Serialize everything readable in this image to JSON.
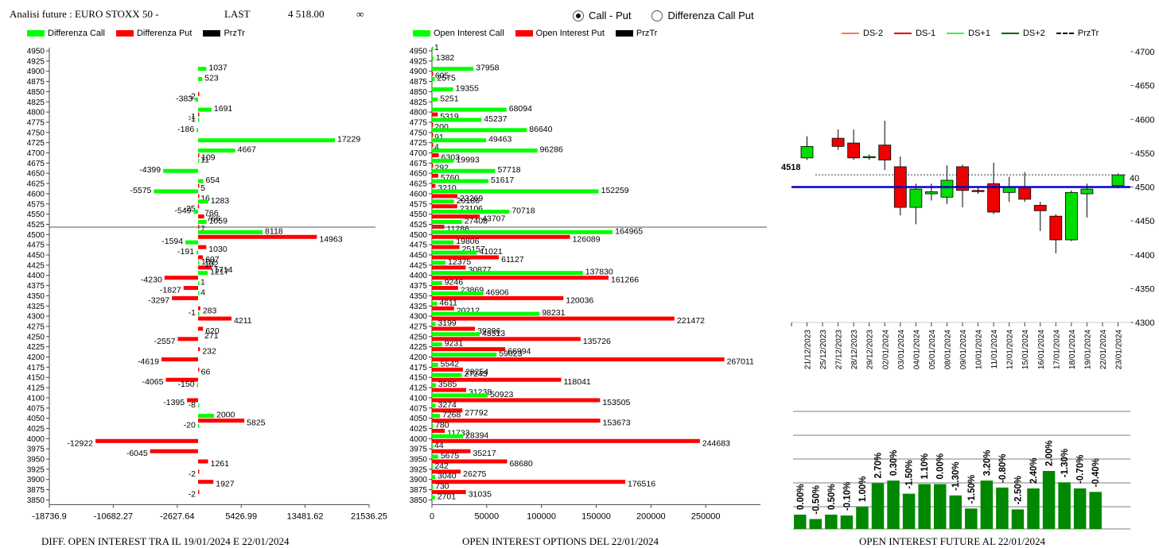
{
  "header": {
    "label": "Analisi future : EURO STOXX 50 -",
    "last_label": "LAST",
    "last_value": "4 518.00",
    "infinity": "∞"
  },
  "radio": {
    "options": [
      "Call - Put",
      "Differenza Call Put"
    ],
    "selected": "Call - Put"
  },
  "colors": {
    "call": "#00ff00",
    "put": "#ff0000",
    "prztr": "#000000",
    "candle_up": "#00dd00",
    "candle_down": "#ee0000",
    "bar_future": "#008800",
    "ref_line": "#0000cc",
    "ds_minus2": "#f08050",
    "ds_minus1": "#dd0000",
    "ds_plus1": "#44ee44",
    "ds_plus2": "#006600"
  },
  "legend1": [
    "Differenza Call",
    "Differenza Put",
    "PrzTr"
  ],
  "legend2": [
    "Open Interest Call",
    "Open Interest Put",
    "PrzTr"
  ],
  "legend3": [
    "DS-2",
    "DS-1",
    "DS+1",
    "DS+2",
    "PrzTr"
  ],
  "captions": {
    "left": "DIFF. OPEN INTEREST TRA IL 19/01/2024 E 22/01/2024",
    "middle": "OPEN INTEREST OPTIONS DEL 22/01/2024",
    "right": "OPEN INTEREST FUTURE AL 22/01/2024"
  },
  "chart_data": [
    {
      "type": "bar",
      "orientation": "horizontal",
      "categories": [
        4950,
        4925,
        4900,
        4875,
        4850,
        4825,
        4800,
        4775,
        4750,
        4725,
        4700,
        4675,
        4650,
        4625,
        4600,
        4575,
        4550,
        4525,
        4500,
        4475,
        4450,
        4425,
        4400,
        4375,
        4350,
        4325,
        4300,
        4275,
        4250,
        4225,
        4200,
        4175,
        4150,
        4125,
        4100,
        4075,
        4050,
        4025,
        4000,
        3975,
        3950,
        3925,
        3900,
        3875,
        3850
      ],
      "series": [
        {
          "name": "Differenza Call",
          "values": [
            null,
            null,
            1037,
            523,
            null,
            -383,
            1691,
            -1,
            -186,
            17229,
            4667,
            11,
            -4399,
            654,
            -5575,
            1283,
            -549,
            1059,
            8118,
            -1594,
            -191,
            102,
            1217,
            1,
            4,
            null,
            -1,
            null,
            null,
            null,
            null,
            null,
            null,
            -150,
            null,
            -8,
            2000,
            -20,
            null,
            null,
            null,
            null,
            null,
            null,
            null
          ]
        },
        {
          "name": "Differenza Put",
          "values": [
            null,
            null,
            null,
            null,
            -2,
            null,
            -1,
            null,
            null,
            null,
            109,
            null,
            null,
            5,
            16,
            -25,
            766,
            7,
            14963,
            1030,
            607,
            1714,
            -4230,
            -1827,
            -3297,
            283,
            4211,
            620,
            -2557,
            232,
            -4619,
            66,
            -4065,
            null,
            -1395,
            null,
            5825,
            null,
            -12922,
            -6045,
            1261,
            -2,
            1927,
            -2,
            null
          ]
        }
      ],
      "extra_labels": [
        {
          "level": 4550,
          "text": "766"
        },
        {
          "level": 4425,
          "text": "102"
        },
        {
          "level": 4250,
          "text": "271"
        }
      ],
      "prztr": 4518,
      "xticks": [
        -18736.9,
        -10682.27,
        -2627.64,
        5426.99,
        13481.62,
        21536.25
      ],
      "xtick_labels": [
        "-18736.9",
        "-10682.27",
        "-2627.64",
        "5426.99",
        "13481.62",
        "21536.25"
      ],
      "xlim": [
        -18736.9,
        21536.25
      ],
      "ylim": [
        3850,
        4950
      ]
    },
    {
      "type": "bar",
      "orientation": "horizontal",
      "categories": [
        4950,
        4925,
        4900,
        4875,
        4850,
        4825,
        4800,
        4775,
        4750,
        4725,
        4700,
        4675,
        4650,
        4625,
        4600,
        4575,
        4550,
        4525,
        4500,
        4475,
        4450,
        4425,
        4400,
        4375,
        4350,
        4325,
        4300,
        4275,
        4250,
        4225,
        4200,
        4175,
        4150,
        4125,
        4100,
        4075,
        4050,
        4025,
        4000,
        3975,
        3950,
        3925,
        3900,
        3875,
        3850
      ],
      "series": [
        {
          "name": "Open Interest Call",
          "values": [
            1,
            1382,
            37958,
            2575,
            19355,
            5251,
            68094,
            45237,
            86640,
            49463,
            96286,
            19993,
            57718,
            51617,
            152259,
            20186,
            70718,
            27408,
            164965,
            19806,
            41021,
            12375,
            137830,
            9246,
            46906,
            4611,
            98231,
            3199,
            43513,
            9231,
            59023,
            5542,
            27243,
            3585,
            50923,
            3274,
            7268,
            780,
            28394,
            44,
            5675,
            242,
            3040,
            730,
            2701
          ]
        },
        {
          "name": "Open Interest Put",
          "values": [
            null,
            null,
            605,
            null,
            null,
            null,
            5319,
            200,
            91,
            4,
            6303,
            292,
            5760,
            3210,
            23269,
            23106,
            43707,
            11286,
            126089,
            25157,
            61127,
            30877,
            161266,
            23869,
            120036,
            20212,
            221472,
            39296,
            135726,
            66994,
            267011,
            28254,
            118041,
            31238,
            153505,
            27792,
            153673,
            11733,
            244683,
            35217,
            68680,
            26275,
            176516,
            31035,
            null
          ]
        }
      ],
      "prztr": 4518,
      "xticks": [
        0,
        50000,
        100000,
        150000,
        200000,
        250000
      ],
      "xlim": [
        0,
        300000
      ],
      "ylim": [
        3850,
        4950
      ]
    },
    {
      "type": "candlestick",
      "dates": [
        "21/12/2023",
        "25/12/2023",
        "27/12/2023",
        "28/12/2023",
        "29/12/2023",
        "02/01/2024",
        "03/01/2024",
        "04/01/2024",
        "05/01/2024",
        "08/01/2024",
        "09/01/2024",
        "10/01/2024",
        "11/01/2024",
        "12/01/2024",
        "15/01/2024",
        "16/01/2024",
        "17/01/2024",
        "18/01/2024",
        "19/01/2024",
        "22/01/2024",
        "23/01/2024"
      ],
      "candles": [
        {
          "o": 4543,
          "h": 4575,
          "l": 4540,
          "c": 4560
        },
        null,
        {
          "o": 4572,
          "h": 4585,
          "l": 4555,
          "c": 4560
        },
        {
          "o": 4565,
          "h": 4585,
          "l": 4540,
          "c": 4543
        },
        {
          "o": 4545,
          "h": 4548,
          "l": 4540,
          "c": 4545
        },
        {
          "o": 4562,
          "h": 4598,
          "l": 4525,
          "c": 4540
        },
        {
          "o": 4530,
          "h": 4545,
          "l": 4458,
          "c": 4470
        },
        {
          "o": 4470,
          "h": 4505,
          "l": 4445,
          "c": 4497
        },
        {
          "o": 4490,
          "h": 4505,
          "l": 4480,
          "c": 4493
        },
        {
          "o": 4485,
          "h": 4532,
          "l": 4475,
          "c": 4510
        },
        {
          "o": 4530,
          "h": 4533,
          "l": 4470,
          "c": 4495
        },
        {
          "o": 4495,
          "h": 4500,
          "l": 4490,
          "c": 4494
        },
        {
          "o": 4505,
          "h": 4536,
          "l": 4460,
          "c": 4463
        },
        {
          "o": 4492,
          "h": 4515,
          "l": 4478,
          "c": 4500
        },
        {
          "o": 4500,
          "h": 4522,
          "l": 4478,
          "c": 4482
        },
        {
          "o": 4473,
          "h": 4478,
          "l": 4435,
          "c": 4465
        },
        {
          "o": 4457,
          "h": 4460,
          "l": 4402,
          "c": 4422
        },
        {
          "o": 4422,
          "h": 4495,
          "l": 4420,
          "c": 4492
        },
        {
          "o": 4490,
          "h": 4505,
          "l": 4455,
          "c": 4497
        },
        null,
        {
          "o": 4502,
          "h": 4520,
          "l": 4498,
          "c": 4518
        }
      ],
      "prztr": 4518,
      "prztr_label": "4518",
      "ref_line": 4500,
      "right_label": "40",
      "yticks": [
        4300,
        4350,
        4400,
        4450,
        4500,
        4550,
        4600,
        4650,
        4700
      ],
      "ylim": [
        4300,
        4700
      ]
    },
    {
      "type": "bar",
      "values": [
        0.0,
        -0.5,
        0.5,
        -0.1,
        1.0,
        2.7,
        0.3,
        -1.5,
        1.1,
        0.0,
        -1.3,
        -1.5,
        3.2,
        -0.8,
        -2.5,
        2.4,
        2.0,
        -1.3,
        -0.7,
        -0.4
      ],
      "value_labels": [
        "0.00%",
        "-0.50%",
        "0.50%",
        "-0.10%",
        "1.00%",
        "2.70%",
        "0.30%",
        "-1.50%",
        "1.10%",
        "0.00%",
        "-1.30%",
        "-1.50%",
        "3.20%",
        "-0.80%",
        "-2.50%",
        "2.40%",
        "2.00%",
        "-1.30%",
        "-0.70%",
        "-0.40%"
      ],
      "grid": true
    }
  ]
}
